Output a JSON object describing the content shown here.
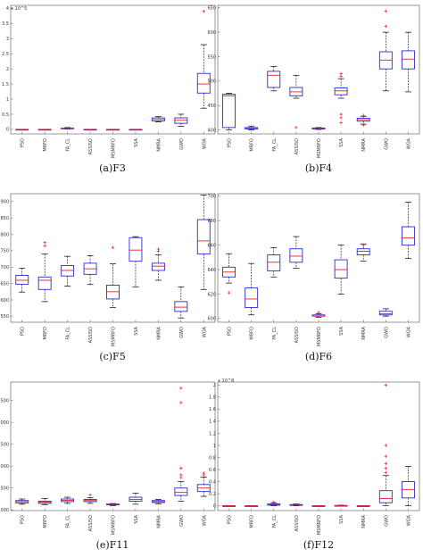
{
  "chart_data": [
    {
      "type": "box",
      "caption": "(a)F3",
      "axis_multiplier": "x 10^5",
      "ylim": [
        -0.15,
        4.1
      ],
      "yticks": [
        0,
        0.5,
        1,
        1.5,
        2,
        2.5,
        3,
        3.5,
        4
      ],
      "categories": [
        "PSO",
        "MRFO",
        "FA_CL",
        "ASSISO",
        "MSMRFO",
        "SSA",
        "NMRA",
        "GWO",
        "WOA"
      ],
      "boxes": [
        {
          "lw": 0,
          "q1": 0,
          "med": 0,
          "q3": 0,
          "uw": 0,
          "outliers": []
        },
        {
          "lw": 0,
          "q1": 0,
          "med": 0,
          "q3": 0,
          "uw": 0,
          "outliers": []
        },
        {
          "lw": 0.01,
          "q1": 0.02,
          "med": 0.03,
          "q3": 0.04,
          "uw": 0.06,
          "outliers": []
        },
        {
          "lw": 0,
          "q1": 0,
          "med": 0,
          "q3": 0,
          "uw": 0,
          "outliers": []
        },
        {
          "lw": 0,
          "q1": 0,
          "med": 0,
          "q3": 0,
          "uw": 0,
          "outliers": []
        },
        {
          "lw": 0,
          "q1": 0,
          "med": 0,
          "q3": 0,
          "uw": 0,
          "outliers": []
        },
        {
          "lw": 0.25,
          "q1": 0.28,
          "med": 0.33,
          "q3": 0.38,
          "uw": 0.42,
          "outliers": []
        },
        {
          "lw": 0.1,
          "q1": 0.2,
          "med": 0.3,
          "q3": 0.38,
          "uw": 0.5,
          "outliers": []
        },
        {
          "lw": 0.7,
          "q1": 1.2,
          "med": 1.5,
          "q3": 1.85,
          "uw": 2.8,
          "outliers": [
            3.9
          ]
        }
      ]
    },
    {
      "type": "box",
      "caption": "(b)F4",
      "ylim": [
        392,
        655
      ],
      "yticks": [
        400,
        450,
        500,
        550,
        600,
        650
      ],
      "categories": [
        "PSO",
        "MRFO",
        "FA_CL",
        "ASSISO",
        "MSMRFO",
        "SSA",
        "NMRA",
        "GWO",
        "WOA"
      ],
      "boxes": [
        {
          "lw": 400,
          "q1": 405,
          "med": 470,
          "q3": 473,
          "uw": 475,
          "outliers": []
        },
        {
          "lw": 400,
          "q1": 402,
          "med": 404,
          "q3": 405,
          "uw": 408,
          "outliers": []
        },
        {
          "lw": 480,
          "q1": 487,
          "med": 512,
          "q3": 520,
          "uw": 530,
          "outliers": []
        },
        {
          "lw": 465,
          "q1": 470,
          "med": 478,
          "q3": 487,
          "uw": 512,
          "outliers": [
            405
          ]
        },
        {
          "lw": 401,
          "q1": 402,
          "med": 403,
          "q3": 404,
          "uw": 405,
          "outliers": []
        },
        {
          "lw": 465,
          "q1": 472,
          "med": 480,
          "q3": 486,
          "uw": 505,
          "outliers": [
            415,
            425,
            432,
            510,
            515
          ]
        },
        {
          "lw": 412,
          "q1": 418,
          "med": 421,
          "q3": 424,
          "uw": 428,
          "outliers": [
            410,
            430
          ]
        },
        {
          "lw": 480,
          "q1": 525,
          "med": 543,
          "q3": 560,
          "uw": 600,
          "outliers": [
            612,
            643
          ]
        },
        {
          "lw": 478,
          "q1": 525,
          "med": 545,
          "q3": 562,
          "uw": 600,
          "outliers": []
        }
      ]
    },
    {
      "type": "box",
      "caption": "(c)F5",
      "ylim": [
        532,
        924
      ],
      "yticks": [
        550,
        600,
        650,
        700,
        750,
        800,
        850,
        900
      ],
      "categories": [
        "PSO",
        "MRFO",
        "FA_CL",
        "ASSISO",
        "MSMRFO",
        "SSA",
        "NMRA",
        "GWO",
        "WOA"
      ],
      "boxes": [
        {
          "lw": 624,
          "q1": 648,
          "med": 660,
          "q3": 675,
          "uw": 697,
          "outliers": []
        },
        {
          "lw": 595,
          "q1": 632,
          "med": 660,
          "q3": 670,
          "uw": 740,
          "outliers": [
            765,
            775
          ]
        },
        {
          "lw": 642,
          "q1": 673,
          "med": 690,
          "q3": 705,
          "uw": 733,
          "outliers": []
        },
        {
          "lw": 647,
          "q1": 678,
          "med": 695,
          "q3": 712,
          "uw": 735,
          "outliers": []
        },
        {
          "lw": 577,
          "q1": 603,
          "med": 625,
          "q3": 645,
          "uw": 710,
          "outliers": [
            760
          ]
        },
        {
          "lw": 640,
          "q1": 718,
          "med": 752,
          "q3": 790,
          "uw": 793,
          "outliers": []
        },
        {
          "lw": 660,
          "q1": 690,
          "med": 703,
          "q3": 712,
          "uw": 738,
          "outliers": [
            748,
            755
          ]
        },
        {
          "lw": 545,
          "q1": 565,
          "med": 578,
          "q3": 595,
          "uw": 640,
          "outliers": []
        },
        {
          "lw": 632,
          "q1": 740,
          "med": 780,
          "q3": 845,
          "uw": 920,
          "outliers": []
        }
      ]
    },
    {
      "type": "box",
      "caption": "(d)F6",
      "ylim": [
        597,
        702
      ],
      "yticks": [
        600,
        620,
        640,
        660,
        680,
        700
      ],
      "categories": [
        "PSO",
        "MRFO",
        "FA_CL",
        "ASSISO",
        "MSMRFO",
        "SSA",
        "NMRA",
        "GWO",
        "WOA"
      ],
      "boxes": [
        {
          "lw": 629,
          "q1": 634,
          "med": 638,
          "q3": 642,
          "uw": 653,
          "outliers": [
            621
          ]
        },
        {
          "lw": 603,
          "q1": 609,
          "med": 616,
          "q3": 625,
          "uw": 645,
          "outliers": []
        },
        {
          "lw": 634,
          "q1": 639,
          "med": 646,
          "q3": 652,
          "uw": 658,
          "outliers": []
        },
        {
          "lw": 641,
          "q1": 646,
          "med": 651,
          "q3": 657,
          "uw": 667,
          "outliers": []
        },
        {
          "lw": 601,
          "q1": 602,
          "med": 602,
          "q3": 603,
          "uw": 604,
          "outliers": [
            605
          ]
        },
        {
          "lw": 620,
          "q1": 633,
          "med": 640,
          "q3": 648,
          "uw": 660,
          "outliers": []
        },
        {
          "lw": 647,
          "q1": 652,
          "med": 655,
          "q3": 657,
          "uw": 661,
          "outliers": [
            660
          ]
        },
        {
          "lw": 602,
          "q1": 603,
          "med": 604,
          "q3": 606,
          "uw": 608,
          "outliers": []
        },
        {
          "lw": 649,
          "q1": 660,
          "med": 666,
          "q3": 675,
          "uw": 695,
          "outliers": []
        }
      ]
    },
    {
      "type": "box",
      "caption": "(e)F11",
      "ylim": [
        985,
        3920
      ],
      "yticks": [
        1000,
        1500,
        2000,
        2500,
        3000,
        3500
      ],
      "categories": [
        "PSO",
        "MRFO",
        "FA_CL",
        "ASSISO",
        "MSMRFO",
        "SSA",
        "NMRA",
        "GWO",
        "WOA"
      ],
      "boxes": [
        {
          "lw": 1130,
          "q1": 1160,
          "med": 1190,
          "q3": 1215,
          "uw": 1250,
          "outliers": []
        },
        {
          "lw": 1120,
          "q1": 1150,
          "med": 1175,
          "q3": 1200,
          "uw": 1260,
          "outliers": []
        },
        {
          "lw": 1150,
          "q1": 1190,
          "med": 1220,
          "q3": 1250,
          "uw": 1290,
          "outliers": []
        },
        {
          "lw": 1150,
          "q1": 1190,
          "med": 1215,
          "q3": 1240,
          "uw": 1280,
          "outliers": [
            1340
          ]
        },
        {
          "lw": 1100,
          "q1": 1115,
          "med": 1125,
          "q3": 1135,
          "uw": 1145,
          "outliers": []
        },
        {
          "lw": 1130,
          "q1": 1200,
          "med": 1240,
          "q3": 1290,
          "uw": 1380,
          "outliers": []
        },
        {
          "lw": 1140,
          "q1": 1170,
          "med": 1190,
          "q3": 1215,
          "uw": 1240,
          "outliers": []
        },
        {
          "lw": 1200,
          "q1": 1330,
          "med": 1400,
          "q3": 1500,
          "uw": 1650,
          "outliers": [
            1740,
            1800,
            1950,
            3450,
            3780
          ]
        },
        {
          "lw": 1310,
          "q1": 1420,
          "med": 1500,
          "q3": 1580,
          "uw": 1750,
          "outliers": [
            1800,
            1840
          ]
        }
      ]
    },
    {
      "type": "box",
      "caption": "(f)F12",
      "axis_multiplier": "x 10^8",
      "ylim": [
        -0.08,
        2.05
      ],
      "yticks": [
        0,
        0.2,
        0.4,
        0.6,
        0.8,
        1,
        1.2,
        1.4,
        1.6,
        1.8,
        2
      ],
      "categories": [
        "PSO",
        "MRFO",
        "FA_CL",
        "ASSISO",
        "MSMRFO",
        "SSA",
        "NMRA",
        "GWO",
        "WOA"
      ],
      "boxes": [
        {
          "lw": 0,
          "q1": 0,
          "med": 0,
          "q3": 0,
          "uw": 0,
          "outliers": []
        },
        {
          "lw": 0,
          "q1": 0,
          "med": 0,
          "q3": 0,
          "uw": 0,
          "outliers": []
        },
        {
          "lw": 0,
          "q1": 0.01,
          "med": 0.02,
          "q3": 0.03,
          "uw": 0.05,
          "outliers": [
            0.06
          ]
        },
        {
          "lw": 0,
          "q1": 0.005,
          "med": 0.01,
          "q3": 0.02,
          "uw": 0.03,
          "outliers": []
        },
        {
          "lw": 0,
          "q1": 0,
          "med": 0,
          "q3": 0,
          "uw": 0,
          "outliers": []
        },
        {
          "lw": 0,
          "q1": 0,
          "med": 0,
          "q3": 0.005,
          "uw": 0.01,
          "outliers": []
        },
        {
          "lw": 0,
          "q1": 0,
          "med": 0,
          "q3": 0,
          "uw": 0,
          "outliers": []
        },
        {
          "lw": 0,
          "q1": 0.05,
          "med": 0.12,
          "q3": 0.25,
          "uw": 0.5,
          "outliers": [
            0.55,
            0.62,
            0.7,
            0.82,
            1.0,
            2.0
          ]
        },
        {
          "lw": 0,
          "q1": 0.13,
          "med": 0.27,
          "q3": 0.4,
          "uw": 0.65,
          "outliers": []
        }
      ]
    }
  ]
}
